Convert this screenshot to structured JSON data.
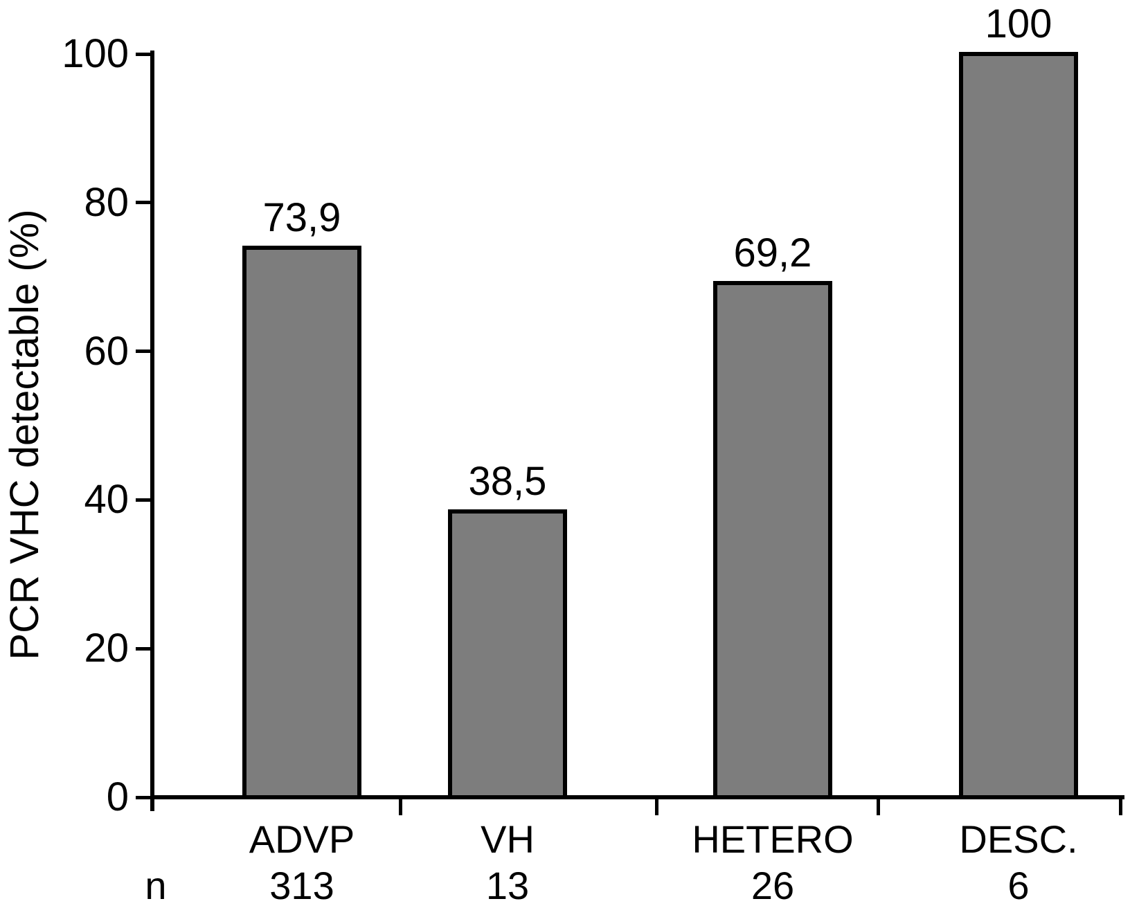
{
  "figure": {
    "background_color": "#ffffff",
    "ink_color": "#000000"
  },
  "chart_data": {
    "type": "bar",
    "title": "",
    "xlabel": "",
    "ylabel": "PCR VHC detectable (%)",
    "categories": [
      "ADVP",
      "VH",
      "HETERO",
      "DESC."
    ],
    "values": [
      73.9,
      38.5,
      69.2,
      100
    ],
    "value_labels": [
      "73,9",
      "38,5",
      "69,2",
      "100"
    ],
    "n_row_label": "n",
    "n_values": [
      "313",
      "13",
      "26",
      "6"
    ],
    "y_ticks": [
      0,
      20,
      40,
      60,
      80,
      100
    ],
    "y_tick_labels": [
      "0",
      "20",
      "40",
      "60",
      "80",
      "100"
    ],
    "ylim": [
      0,
      100
    ],
    "grid": false,
    "legend": "none",
    "bar_color": "#7d7d7d",
    "bar_border_color": "#000000"
  }
}
